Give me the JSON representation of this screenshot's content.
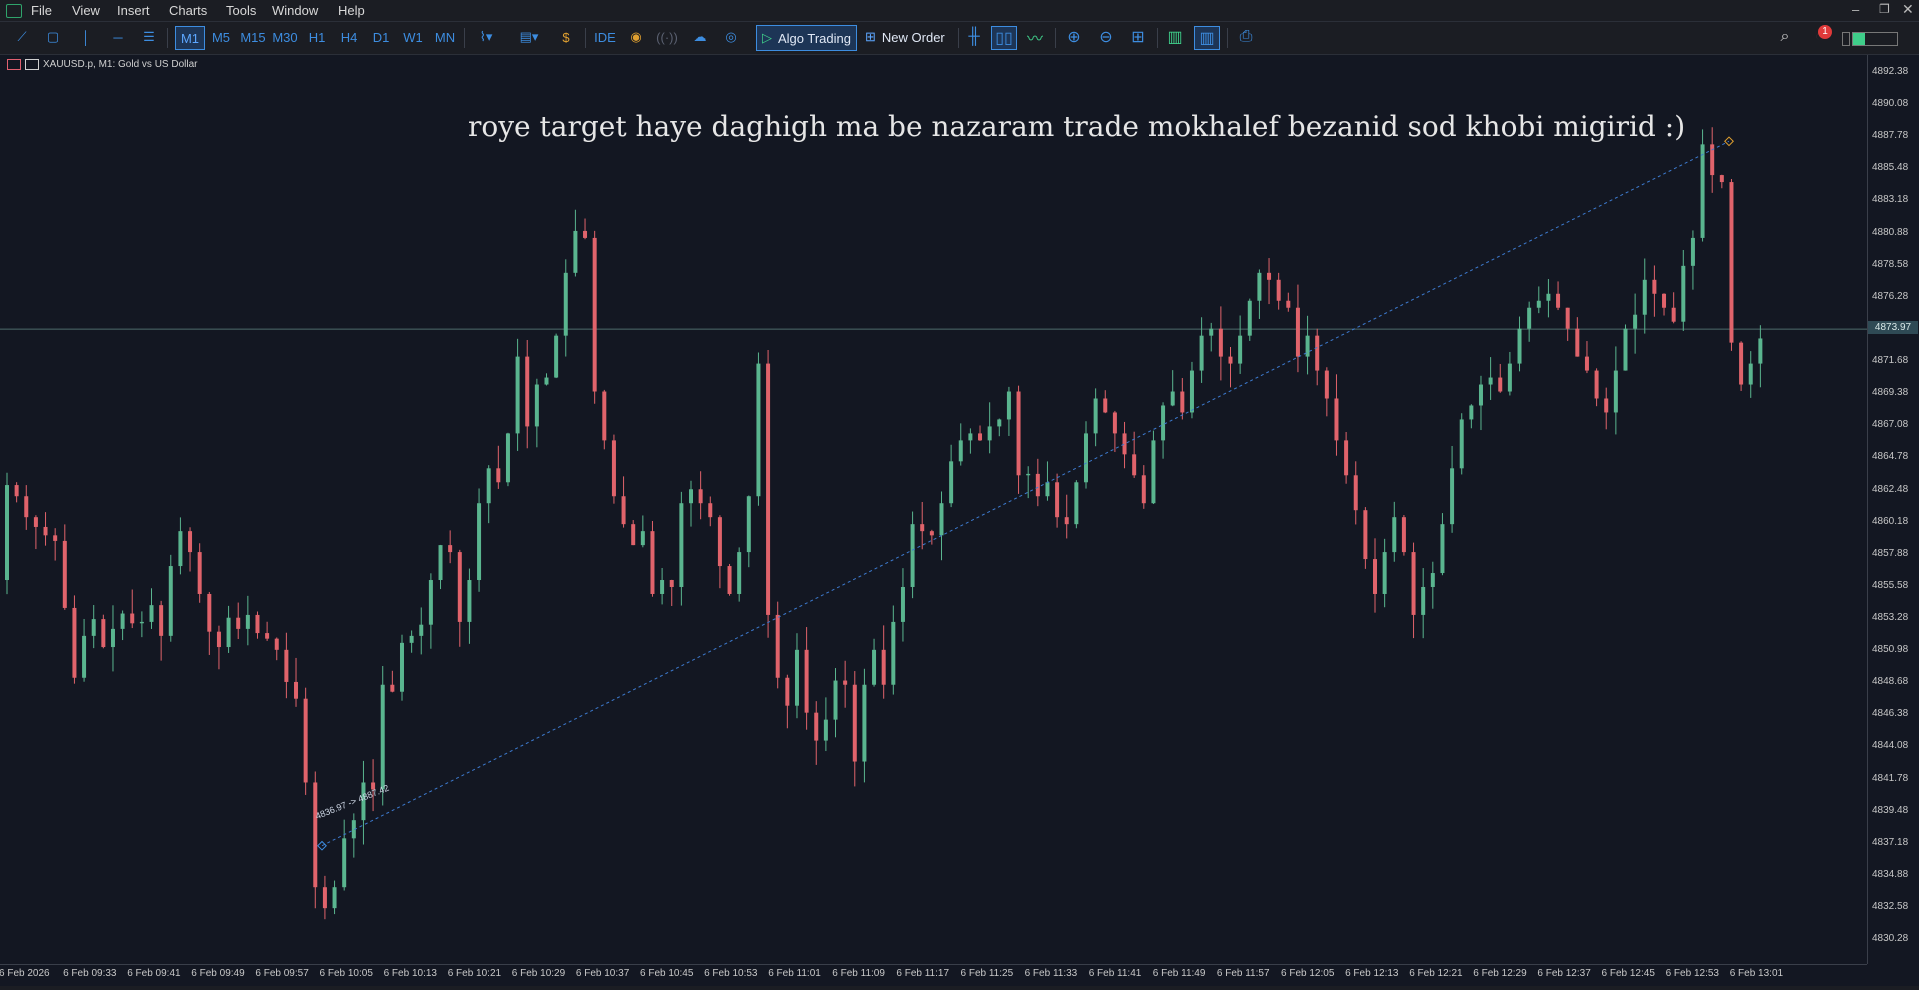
{
  "menu": [
    "File",
    "View",
    "Insert",
    "Charts",
    "Tools",
    "Window",
    "Help"
  ],
  "toolbar": {
    "timeframes": [
      "M1",
      "M5",
      "M15",
      "M30",
      "H1",
      "H4",
      "D1",
      "W1",
      "MN"
    ],
    "active_timeframe": "M1",
    "ide_label": "IDE",
    "algo_label": "Algo Trading",
    "new_order_label": "New Order",
    "notification_count": "1"
  },
  "symbol": {
    "info": "XAUUSD.p, M1:  Gold vs US Dollar"
  },
  "annotation": "roye target haye daghigh ma be nazaram trade mokhalef bezanid sod khobi migirid :)",
  "trendline": {
    "label": "4836.97 -> 4887.42",
    "from": 4836.97,
    "to": 4887.42
  },
  "current_price": "4873.97",
  "colors": {
    "bull": "#5ab58f",
    "bear": "#e0636b",
    "background": "#131722",
    "accent": "#3d8de0"
  },
  "chart_data": {
    "type": "candlestick",
    "ylim": [
      4828.5,
      4893.6
    ],
    "price_ticks": [
      "4892.38",
      "4890.08",
      "4887.78",
      "4885.48",
      "4883.18",
      "4880.88",
      "4878.58",
      "4876.28",
      "4873.98",
      "4871.68",
      "4869.38",
      "4867.08",
      "4864.78",
      "4862.48",
      "4860.18",
      "4857.88",
      "4855.58",
      "4853.28",
      "4850.98",
      "4848.68",
      "4846.38",
      "4844.08",
      "4841.78",
      "4839.48",
      "4837.18",
      "4834.88",
      "4832.58",
      "4830.28"
    ],
    "time_ticks": [
      "6 Feb 2026",
      "6 Feb 09:33",
      "6 Feb 09:41",
      "6 Feb 09:49",
      "6 Feb 09:57",
      "6 Feb 10:05",
      "6 Feb 10:13",
      "6 Feb 10:21",
      "6 Feb 10:29",
      "6 Feb 10:37",
      "6 Feb 10:45",
      "6 Feb 10:53",
      "6 Feb 11:01",
      "6 Feb 11:09",
      "6 Feb 11:17",
      "6 Feb 11:25",
      "6 Feb 11:33",
      "6 Feb 11:41",
      "6 Feb 11:49",
      "6 Feb 11:57",
      "6 Feb 12:05",
      "6 Feb 12:13",
      "6 Feb 12:21",
      "6 Feb 12:29",
      "6 Feb 12:37",
      "6 Feb 12:45",
      "6 Feb 12:53",
      "6 Feb 13:01"
    ],
    "anchors": [
      [
        0,
        4856
      ],
      [
        1,
        4862.8
      ],
      [
        2,
        4862
      ],
      [
        3,
        4860.5
      ],
      [
        4,
        4859.8
      ],
      [
        5,
        4859.2
      ],
      [
        6,
        4858.8
      ],
      [
        7,
        4854
      ],
      [
        8,
        4849
      ],
      [
        9,
        4852
      ],
      [
        10,
        4853.2
      ],
      [
        11,
        4851.2
      ],
      [
        12,
        4852.5
      ],
      [
        13,
        4853.6
      ],
      [
        14,
        4852.9
      ],
      [
        15,
        4853
      ],
      [
        16,
        4854.2
      ],
      [
        17,
        4852
      ],
      [
        18,
        4857
      ],
      [
        19,
        4859.5
      ],
      [
        20,
        4858
      ],
      [
        21,
        4855
      ],
      [
        22,
        4852.3
      ],
      [
        23,
        4851.2
      ],
      [
        24,
        4853.3
      ],
      [
        25,
        4852.5
      ],
      [
        26,
        4853.5
      ],
      [
        27,
        4852.2
      ],
      [
        28,
        4851.8
      ],
      [
        29,
        4851
      ],
      [
        30,
        4848.7
      ],
      [
        31,
        4847.5
      ],
      [
        32,
        4841.5
      ],
      [
        33,
        4834
      ],
      [
        34,
        4832.5
      ],
      [
        35,
        4834
      ],
      [
        36,
        4837.5
      ],
      [
        37,
        4838.8
      ],
      [
        38,
        4841.5
      ],
      [
        39,
        4841
      ],
      [
        40,
        4848.5
      ],
      [
        41,
        4848
      ],
      [
        42,
        4851.5
      ],
      [
        43,
        4852
      ],
      [
        44,
        4852.8
      ],
      [
        45,
        4856
      ],
      [
        46,
        4858.5
      ],
      [
        47,
        4858
      ],
      [
        48,
        4853
      ],
      [
        49,
        4856
      ],
      [
        50,
        4861.5
      ],
      [
        51,
        4864
      ],
      [
        52,
        4863
      ],
      [
        53,
        4866.5
      ],
      [
        54,
        4872
      ],
      [
        55,
        4867
      ],
      [
        56,
        4870
      ],
      [
        57,
        4870.5
      ],
      [
        58,
        4873.5
      ],
      [
        59,
        4878
      ],
      [
        60,
        4881
      ],
      [
        61,
        4880.5
      ],
      [
        62,
        4869.5
      ],
      [
        63,
        4866
      ],
      [
        64,
        4862
      ],
      [
        65,
        4860
      ],
      [
        66,
        4858.5
      ],
      [
        67,
        4859.5
      ],
      [
        68,
        4855
      ],
      [
        69,
        4856
      ],
      [
        70,
        4855.5
      ],
      [
        71,
        4861.5
      ],
      [
        72,
        4862.5
      ],
      [
        73,
        4861.5
      ],
      [
        74,
        4860.5
      ],
      [
        75,
        4857
      ],
      [
        76,
        4855
      ],
      [
        77,
        4858
      ],
      [
        78,
        4862
      ],
      [
        79,
        4871.5
      ],
      [
        80,
        4853.5
      ],
      [
        81,
        4849
      ],
      [
        82,
        4847
      ],
      [
        83,
        4851
      ],
      [
        84,
        4846.5
      ],
      [
        85,
        4844.5
      ],
      [
        86,
        4846
      ],
      [
        87,
        4848.8
      ],
      [
        88,
        4848.5
      ],
      [
        89,
        4843
      ],
      [
        90,
        4848.5
      ],
      [
        91,
        4851
      ],
      [
        92,
        4848.5
      ],
      [
        93,
        4853
      ],
      [
        94,
        4855.5
      ],
      [
        95,
        4860
      ],
      [
        96,
        4859.5
      ],
      [
        97,
        4859.2
      ],
      [
        98,
        4861.5
      ],
      [
        99,
        4864.5
      ],
      [
        100,
        4866
      ],
      [
        101,
        4866.5
      ],
      [
        102,
        4866
      ],
      [
        103,
        4867
      ],
      [
        104,
        4867.5
      ],
      [
        105,
        4869.5
      ],
      [
        106,
        4863.5
      ],
      [
        107,
        4863.6
      ],
      [
        108,
        4862
      ],
      [
        109,
        4863
      ],
      [
        110,
        4860.5
      ],
      [
        111,
        4860
      ],
      [
        112,
        4863
      ],
      [
        113,
        4866.5
      ],
      [
        114,
        4869
      ],
      [
        115,
        4868
      ],
      [
        116,
        4866.5
      ],
      [
        117,
        4865
      ],
      [
        118,
        4863.5
      ],
      [
        119,
        4861.5
      ],
      [
        120,
        4866
      ],
      [
        121,
        4868.5
      ],
      [
        122,
        4869.5
      ],
      [
        123,
        4868
      ],
      [
        124,
        4871
      ],
      [
        125,
        4873.5
      ],
      [
        126,
        4874
      ],
      [
        127,
        4872
      ],
      [
        128,
        4871.5
      ],
      [
        129,
        4873.5
      ],
      [
        130,
        4876
      ],
      [
        131,
        4878
      ],
      [
        132,
        4877.5
      ],
      [
        133,
        4876
      ],
      [
        134,
        4875.5
      ],
      [
        135,
        4872
      ],
      [
        136,
        4873.5
      ],
      [
        137,
        4871
      ],
      [
        138,
        4869
      ],
      [
        139,
        4866
      ],
      [
        140,
        4863.5
      ],
      [
        141,
        4861
      ],
      [
        142,
        4857.5
      ],
      [
        143,
        4855
      ],
      [
        144,
        4858
      ],
      [
        145,
        4860.5
      ],
      [
        146,
        4858
      ],
      [
        147,
        4853.5
      ],
      [
        148,
        4855.5
      ],
      [
        149,
        4856.5
      ],
      [
        150,
        4860
      ],
      [
        151,
        4864
      ],
      [
        152,
        4867.5
      ],
      [
        153,
        4868.5
      ],
      [
        154,
        4870
      ],
      [
        155,
        4870.5
      ],
      [
        156,
        4869.5
      ],
      [
        157,
        4871.5
      ],
      [
        158,
        4874
      ],
      [
        159,
        4875.5
      ],
      [
        160,
        4876
      ],
      [
        161,
        4876.5
      ],
      [
        162,
        4875.5
      ],
      [
        163,
        4874
      ],
      [
        164,
        4872
      ],
      [
        165,
        4871
      ],
      [
        166,
        4869
      ],
      [
        167,
        4868
      ],
      [
        168,
        4871
      ],
      [
        169,
        4874
      ],
      [
        170,
        4875
      ],
      [
        171,
        4877.5
      ],
      [
        172,
        4876.5
      ],
      [
        173,
        4875.5
      ],
      [
        174,
        4874.5
      ],
      [
        175,
        4878.5
      ],
      [
        176,
        4880.5
      ],
      [
        177,
        4887.2
      ],
      [
        178,
        4885
      ],
      [
        179,
        4884.5
      ],
      [
        180,
        4873
      ],
      [
        181,
        4870
      ],
      [
        182,
        4871.5
      ],
      [
        183,
        4873.3
      ]
    ]
  }
}
